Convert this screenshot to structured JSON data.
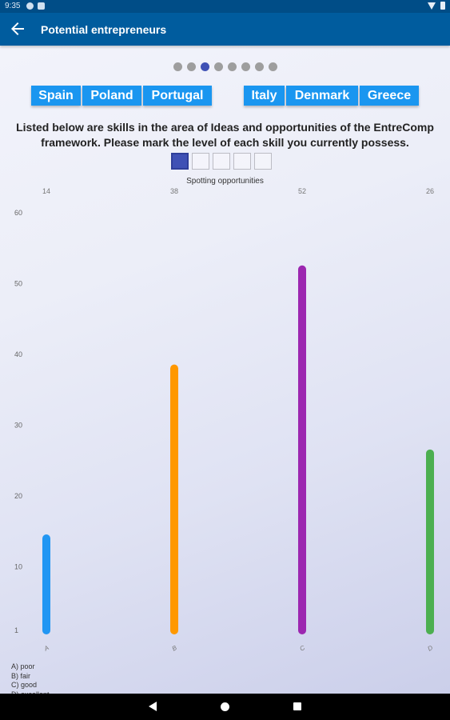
{
  "status_bar": {
    "time": "9:35"
  },
  "app_bar": {
    "title": "Potential entrepreneurs"
  },
  "pager": {
    "count": 8,
    "active_index": 2,
    "active_color": "#3f51b5",
    "inactive_color": "#9e9e9e"
  },
  "countries": {
    "group1": [
      "Spain",
      "Poland",
      "Portugal"
    ],
    "group2": [
      "Italy",
      "Denmark",
      "Greece"
    ]
  },
  "instructions": "Listed below are skills in the area of Ideas and opportunities of the EntreComp framework. Please mark the level of each skill you currently possess.",
  "skill_selector": {
    "count": 5,
    "selected_index": 0
  },
  "chart_data": {
    "type": "bar",
    "title": "Spotting opportunities",
    "categories": [
      "A",
      "B",
      "C",
      "D"
    ],
    "values": [
      14,
      38,
      52,
      26
    ],
    "colors": [
      "#2196f3",
      "#ff9800",
      "#9c27b0",
      "#4caf50"
    ],
    "yticks": [
      1,
      10,
      20,
      30,
      40,
      50,
      60
    ],
    "ylim": [
      1,
      60
    ],
    "legend": [
      "A) poor",
      "B) fair",
      "C) good",
      "D) excellent"
    ]
  }
}
